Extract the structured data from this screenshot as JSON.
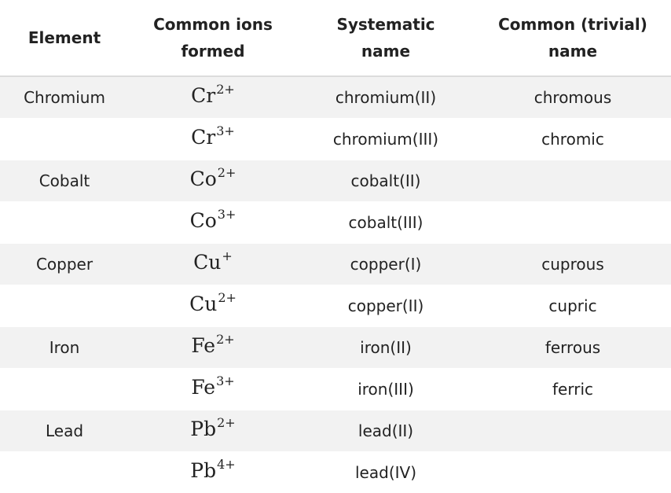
{
  "header": {
    "element_label": "Element",
    "ions_line1": "Common ions",
    "ions_line2": "formed",
    "systematic_line1": "Systematic",
    "systematic_line2": "name",
    "trivial_line1": "Common (trivial)",
    "trivial_line2": "name"
  },
  "rows": [
    {
      "element": "Chromium",
      "ion_base": "Cr",
      "ion_charge": "2+",
      "systematic": "chromium(II)",
      "trivial": "chromous"
    },
    {
      "element": "",
      "ion_base": "Cr",
      "ion_charge": "3+",
      "systematic": "chromium(III)",
      "trivial": "chromic"
    },
    {
      "element": "Cobalt",
      "ion_base": "Co",
      "ion_charge": "2+",
      "systematic": "cobalt(II)",
      "trivial": ""
    },
    {
      "element": "",
      "ion_base": "Co",
      "ion_charge": "3+",
      "systematic": "cobalt(III)",
      "trivial": ""
    },
    {
      "element": "Copper",
      "ion_base": "Cu",
      "ion_charge": "+",
      "systematic": "copper(I)",
      "trivial": "cuprous"
    },
    {
      "element": "",
      "ion_base": "Cu",
      "ion_charge": "2+",
      "systematic": "copper(II)",
      "trivial": "cupric"
    },
    {
      "element": "Iron",
      "ion_base": "Fe",
      "ion_charge": "2+",
      "systematic": "iron(II)",
      "trivial": "ferrous"
    },
    {
      "element": "",
      "ion_base": "Fe",
      "ion_charge": "3+",
      "systematic": "iron(III)",
      "trivial": "ferric"
    },
    {
      "element": "Lead",
      "ion_base": "Pb",
      "ion_charge": "2+",
      "systematic": "lead(II)",
      "trivial": ""
    },
    {
      "element": "",
      "ion_base": "Pb",
      "ion_charge": "4+",
      "systematic": "lead(IV)",
      "trivial": ""
    }
  ],
  "colors": {
    "row_shade": "#f2f2f2",
    "header_rule": "#dcdcdc",
    "text": "#222222"
  }
}
